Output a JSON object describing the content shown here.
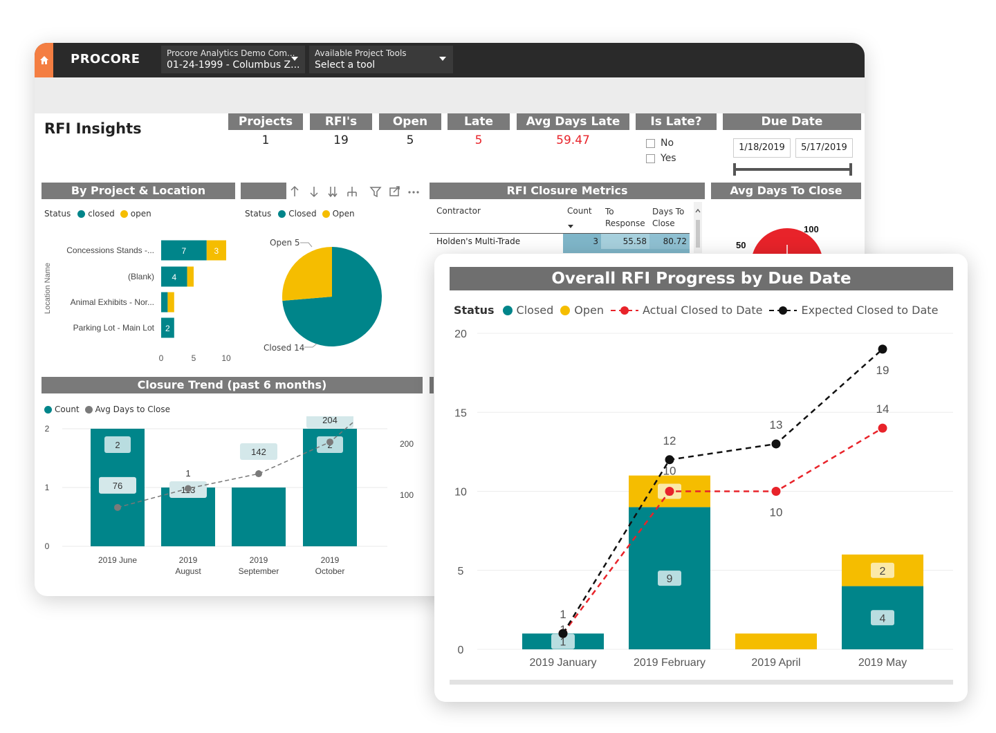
{
  "app": {
    "brand": "PROCORE",
    "company_dropdown": {
      "line1": "Procore Analytics Demo Com...",
      "line2": "01-24-1999 - Columbus Z..."
    },
    "tools_dropdown": {
      "line1": "Available Project Tools",
      "line2": "Select a tool"
    }
  },
  "page_title": "RFI Insights",
  "kpis": [
    {
      "label": "Projects",
      "value": "1"
    },
    {
      "label": "RFI's",
      "value": "19"
    },
    {
      "label": "Open",
      "value": "5"
    },
    {
      "label": "Late",
      "value": "5"
    },
    {
      "label": "Avg Days Late",
      "value": "59.47"
    }
  ],
  "is_late": {
    "label": "Is Late?",
    "options": [
      "No",
      "Yes"
    ]
  },
  "due_date": {
    "label": "Due Date",
    "start": "1/18/2019",
    "end": "5/17/2019"
  },
  "sections": {
    "by_project": "By Project & Location",
    "closure_metrics": "RFI Closure Metrics",
    "avg_days": "Avg Days To Close",
    "closure_trend": "Closure Trend (past 6 months)",
    "overall_progress": "Overall RFI Progress by Due Date"
  },
  "colors": {
    "closed": "#00858a",
    "open": "#f5bd00",
    "actual": "#e8232a",
    "expected": "#111111",
    "header": "#7a7a7a"
  },
  "location_chart": {
    "legend_title": "Status",
    "legend": [
      "closed",
      "open"
    ],
    "axis_title": "Location Name",
    "ticks": [
      "0",
      "5",
      "10"
    ]
  },
  "pie_chart": {
    "legend_title": "Status",
    "legend": [
      "Closed",
      "Open"
    ],
    "open_label": "Open 5",
    "closed_label": "Closed 14"
  },
  "closure_table": {
    "headers": [
      "Contractor",
      "Count",
      "To Response",
      "Days To Close"
    ],
    "rows": [
      {
        "contractor": "Holden's Multi-Trade",
        "count": "3",
        "to_response": "55.58",
        "days_to_close": "80.72"
      }
    ]
  },
  "gauge": {
    "label_100": "100",
    "label_50": "50"
  },
  "trend_chart": {
    "legend": [
      "Count",
      "Avg Days to Close"
    ],
    "left_ticks": [
      "0",
      "1",
      "2"
    ],
    "right_ticks": [
      "100",
      "200"
    ],
    "x_labels": [
      [
        "2019 June"
      ],
      [
        "2019",
        "August"
      ],
      [
        "2019",
        "September"
      ],
      [
        "2019",
        "October"
      ]
    ]
  },
  "progress_legend": {
    "title": "Status",
    "items": [
      "Closed",
      "Open",
      "Actual Closed to Date",
      "Expected Closed to Date"
    ]
  },
  "chart_data": [
    {
      "type": "bar",
      "title": "By Project & Location",
      "orientation": "horizontal",
      "stacked": true,
      "categories": [
        "Concessions Stands -...",
        "(Blank)",
        "Animal Exhibits - Nor...",
        "Parking Lot - Main Lot"
      ],
      "series": [
        {
          "name": "closed",
          "values": [
            7,
            4,
            1,
            2
          ],
          "labels": [
            "7",
            "4",
            "",
            "2"
          ]
        },
        {
          "name": "open",
          "values": [
            3,
            1,
            1,
            0
          ],
          "labels": [
            "3",
            "",
            "",
            ""
          ]
        }
      ],
      "xlim": [
        0,
        10
      ],
      "ylabel": "Location Name"
    },
    {
      "type": "pie",
      "slices": [
        {
          "name": "Closed",
          "value": 14
        },
        {
          "name": "Open",
          "value": 5
        }
      ]
    },
    {
      "type": "bar",
      "title": "Closure Trend (past 6 months)",
      "categories": [
        "2019 June",
        "2019 August",
        "2019 September",
        "2019 October"
      ],
      "series": [
        {
          "name": "Count",
          "values": [
            2,
            1,
            1,
            2
          ]
        },
        {
          "name": "Avg Days to Close",
          "values": [
            76,
            113,
            142,
            204
          ]
        }
      ],
      "ylim": [
        0,
        2
      ],
      "y2lim": [
        0,
        230
      ]
    },
    {
      "type": "bar",
      "title": "Overall RFI Progress by Due Date",
      "stacked": true,
      "categories": [
        "2019 January",
        "2019 February",
        "2019 April",
        "2019 May"
      ],
      "series": [
        {
          "name": "Closed",
          "values": [
            1,
            9,
            0,
            4
          ],
          "labels": [
            "1",
            "9",
            "",
            "4"
          ]
        },
        {
          "name": "Open",
          "values": [
            0,
            2,
            1,
            2
          ],
          "labels": [
            "",
            "2",
            "",
            "2"
          ]
        }
      ],
      "lines": [
        {
          "name": "Actual Closed to Date",
          "values": [
            1,
            10,
            10,
            14
          ]
        },
        {
          "name": "Expected Closed to Date",
          "values": [
            1,
            12,
            13,
            19
          ]
        }
      ],
      "ylim": [
        0,
        20
      ],
      "yticks": [
        "0",
        "5",
        "10",
        "15",
        "20"
      ]
    }
  ]
}
